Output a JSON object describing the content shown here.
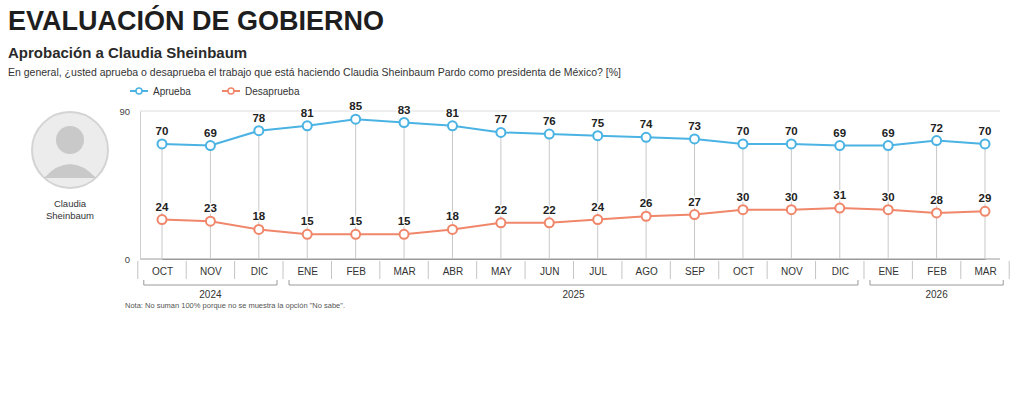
{
  "chart_data": {
    "type": "line",
    "title": "EVALUACIÓN DE GOBIERNO",
    "subtitle": "Aprobación a Claudia Sheinbaum",
    "question": "En general, ¿usted aprueba o desaprueba el trabajo que está haciendo Claudia Sheinbaum Pardo como presidenta de México? [%]",
    "photo_caption": [
      "Claudia",
      "Sheinbaum"
    ],
    "note": "Nota: No suman 100% porque no se muestra la opción \"No sabe\".",
    "categories": [
      "OCT",
      "NOV",
      "DIC",
      "ENE",
      "FEB",
      "MAR",
      "ABR",
      "MAY",
      "JUN",
      "JUL",
      "AGO",
      "SEP",
      "OCT",
      "NOV",
      "DIC",
      "ENE",
      "FEB",
      "MAR"
    ],
    "groups": [
      {
        "label": "2024",
        "count": 3
      },
      {
        "label": "2025",
        "count": 12
      },
      {
        "label": "2026",
        "count": 3
      }
    ],
    "series": [
      {
        "name": "Aprueba",
        "color": "#4ab3e3",
        "marker": "circle",
        "line_style": "solid",
        "values": [
          70,
          69,
          78,
          81,
          85,
          83,
          81,
          77,
          76,
          75,
          74,
          73,
          70,
          70,
          69,
          69,
          72,
          70
        ]
      },
      {
        "name": "Desaprueba",
        "color": "#f0866a",
        "marker": "circle",
        "line_style": "solid",
        "values": [
          24,
          23,
          18,
          15,
          15,
          15,
          18,
          22,
          22,
          24,
          26,
          27,
          30,
          30,
          31,
          30,
          28,
          29
        ]
      }
    ],
    "ylim": [
      0,
      90
    ],
    "yticks": [
      0,
      90
    ],
    "grid": true,
    "legend": "top-left",
    "data_labels": true
  }
}
